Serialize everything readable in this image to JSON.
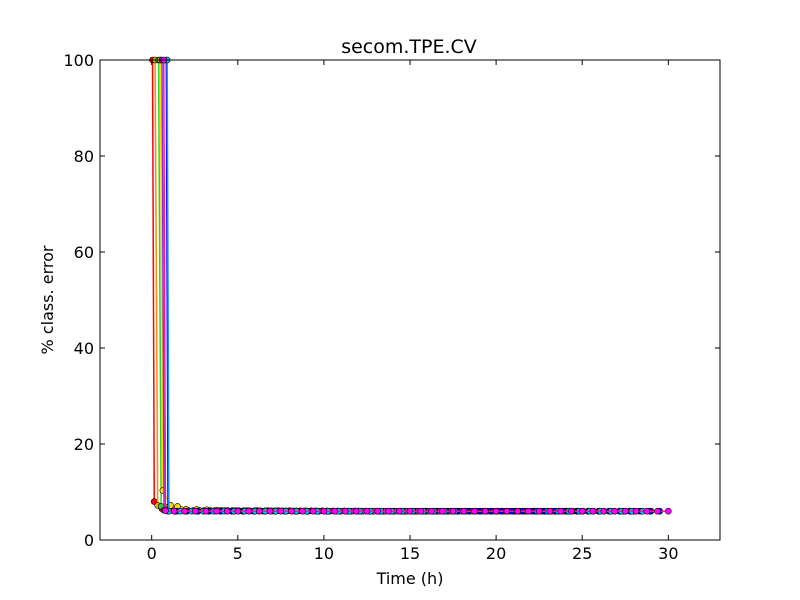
{
  "chart_data": {
    "type": "line",
    "title": "secom.TPE.CV",
    "xlabel": "Time (h)",
    "ylabel": "% class. error",
    "xlim": [
      -3,
      33
    ],
    "ylim": [
      0,
      100
    ],
    "xticks": [
      0,
      5,
      10,
      15,
      20,
      25,
      30
    ],
    "yticks": [
      0,
      20,
      40,
      60,
      80,
      100
    ],
    "grid": false,
    "legend": "none",
    "plateau_value": 6.0,
    "series": [
      {
        "color": "#ff0000",
        "marker_color": "#ff0000",
        "points": [
          [
            0.05,
            100
          ],
          [
            0.15,
            8.0
          ],
          [
            0.6,
            6.5
          ],
          [
            1.2,
            6.2
          ],
          [
            3,
            6.1
          ],
          [
            8,
            6.1
          ],
          [
            15,
            6.0
          ],
          [
            22,
            6.0
          ],
          [
            27.5,
            6.0
          ]
        ]
      },
      {
        "color": "#ff8c00",
        "marker_color": "#ffa500",
        "points": [
          [
            0.2,
            100
          ],
          [
            0.35,
            7.2
          ],
          [
            0.9,
            6.8
          ],
          [
            1.6,
            6.5
          ],
          [
            2.1,
            6.2
          ],
          [
            6,
            6.1
          ],
          [
            12,
            6.0
          ],
          [
            20,
            6.0
          ],
          [
            26,
            6.0
          ]
        ]
      },
      {
        "color": "#32cd32",
        "marker_color": "#32cd32",
        "points": [
          [
            0.4,
            100
          ],
          [
            0.55,
            7.0
          ],
          [
            1.0,
            6.5
          ],
          [
            2.5,
            6.1
          ],
          [
            9,
            6.0
          ],
          [
            16,
            6.0
          ],
          [
            24,
            6.0
          ],
          [
            28,
            6.0
          ]
        ]
      },
      {
        "color": "#ffd700",
        "marker_color": "#ffd700",
        "points": [
          [
            0.5,
            100
          ],
          [
            0.65,
            10.3
          ],
          [
            1.1,
            7.2
          ],
          [
            1.5,
            7.0
          ],
          [
            2.0,
            6.4
          ],
          [
            5,
            6.1
          ],
          [
            14,
            6.0
          ],
          [
            21,
            6.0
          ],
          [
            25,
            6.0
          ]
        ]
      },
      {
        "color": "#8a2be2",
        "marker_color": "#9932cc",
        "points": [
          [
            0.6,
            100
          ],
          [
            0.72,
            6.2
          ],
          [
            1.4,
            6.0
          ],
          [
            4,
            6.0
          ],
          [
            11,
            6.0
          ],
          [
            18,
            6.0
          ],
          [
            29,
            6.0
          ]
        ]
      },
      {
        "color": "#0000ff",
        "marker_color": "#0000ff",
        "points": [
          [
            0.85,
            100
          ],
          [
            0.95,
            6.0
          ],
          [
            2,
            6.0
          ],
          [
            6,
            6.0
          ],
          [
            12,
            6.0
          ],
          [
            19,
            6.0
          ],
          [
            26,
            6.0
          ],
          [
            29.5,
            6.0
          ]
        ]
      },
      {
        "color": "#1e90ff",
        "marker_color": "#00bfff",
        "points": [
          [
            0.9,
            100
          ],
          [
            1.0,
            6.0
          ],
          [
            3,
            6.0
          ],
          [
            9,
            6.0
          ],
          [
            17,
            6.0
          ],
          [
            23,
            6.0
          ],
          [
            28.5,
            6.0
          ]
        ]
      },
      {
        "color": "#ff1493",
        "marker_color": "#ff00ff",
        "points": [
          [
            0.7,
            100
          ],
          [
            0.8,
            6.1
          ],
          [
            1.3,
            6.0
          ],
          [
            5,
            6.0
          ],
          [
            10,
            6.0
          ],
          [
            20,
            6.0
          ],
          [
            30,
            6.0
          ]
        ]
      }
    ]
  }
}
